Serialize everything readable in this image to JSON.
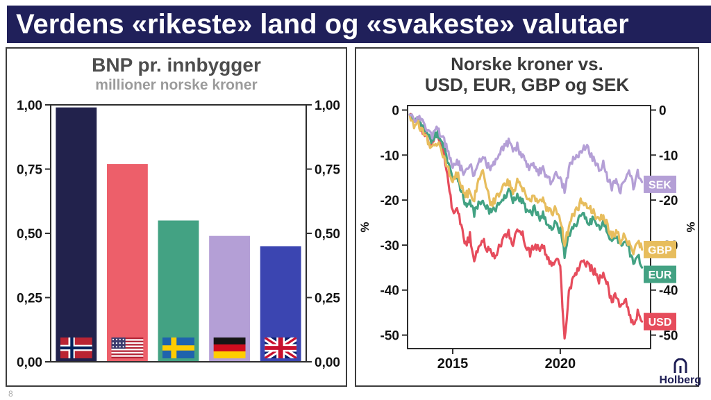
{
  "banner": {
    "title": "Verdens «rikeste» land og «svakeste» valutaer"
  },
  "page_number": "8",
  "logo": {
    "text": "Holberg"
  },
  "chart_data": [
    {
      "type": "bar",
      "title": "BNP pr. innbygger",
      "subtitle": "millioner norske kroner",
      "categories": [
        "Norge",
        "USA",
        "Sverige",
        "Tyskland",
        "Storbritannia"
      ],
      "values": [
        0.99,
        0.77,
        0.55,
        0.49,
        0.45
      ],
      "colors": [
        "#22224c",
        "#ed5f6a",
        "#43a283",
        "#b49fd6",
        "#3b45b1"
      ],
      "flags": [
        "norway",
        "usa",
        "sweden",
        "germany",
        "uk"
      ],
      "ylim": [
        0,
        1.0
      ],
      "yticks": [
        0,
        0.25,
        0.5,
        0.75,
        1.0
      ],
      "ytick_labels": [
        "0,00",
        "0,25",
        "0,50",
        "0,75",
        "1,00"
      ]
    },
    {
      "type": "line",
      "title": "Norske kroner vs. USD, EUR, GBP og SEK",
      "title_lines": [
        "Norske kroner vs.",
        "USD, EUR, GBP og SEK"
      ],
      "ylabel": "%",
      "xlim": [
        2012.9,
        2024.2
      ],
      "ylim": [
        -53,
        1
      ],
      "yticks": [
        0,
        -10,
        -20,
        -30,
        -40,
        -50
      ],
      "ytick_labels": [
        "0",
        "-10",
        "-20",
        "-30",
        "-40",
        "-50"
      ],
      "xticks": [
        2015,
        2020
      ],
      "xtick_labels": [
        "2015",
        "2020"
      ],
      "x_start": 2013.0,
      "x_step": 0.2,
      "series": [
        {
          "name": "SEK",
          "color": "#b49fd6",
          "label_y": -16.5,
          "values": [
            -1,
            -2,
            -1,
            -3,
            -4,
            -6,
            -4,
            -5,
            -7,
            -9,
            -13,
            -11,
            -13,
            -14,
            -12,
            -15,
            -12,
            -10,
            -12,
            -13,
            -11,
            -9,
            -8,
            -7,
            -9,
            -8,
            -10,
            -12,
            -13,
            -12,
            -14,
            -13,
            -15,
            -16,
            -14,
            -15,
            -18,
            -13,
            -11,
            -10,
            -9,
            -8,
            -10,
            -11,
            -13,
            -12,
            -15,
            -17,
            -16,
            -18,
            -15,
            -13,
            -17,
            -14,
            -16
          ]
        },
        {
          "name": "GBP",
          "color": "#e7bd5d",
          "label_y": -31,
          "values": [
            -1,
            -4,
            -3,
            -5,
            -6,
            -9,
            -7,
            -8,
            -11,
            -13,
            -16,
            -14,
            -17,
            -19,
            -18,
            -20,
            -15,
            -13,
            -18,
            -21,
            -20,
            -18,
            -17,
            -16,
            -18,
            -16,
            -17,
            -19,
            -20,
            -19,
            -21,
            -20,
            -22,
            -23,
            -22,
            -24,
            -30,
            -26,
            -23,
            -22,
            -20,
            -21,
            -22,
            -23,
            -25,
            -23,
            -26,
            -28,
            -27,
            -29,
            -28,
            -30,
            -32,
            -29,
            -31
          ]
        },
        {
          "name": "EUR",
          "color": "#43a283",
          "label_y": -36.5,
          "values": [
            -1,
            -3,
            -2,
            -4,
            -5,
            -7,
            -5,
            -6,
            -8,
            -12,
            -16,
            -15,
            -18,
            -21,
            -20,
            -23,
            -21,
            -20,
            -22,
            -23,
            -22,
            -20,
            -19,
            -18,
            -20,
            -19,
            -20,
            -22,
            -23,
            -22,
            -24,
            -23,
            -25,
            -26,
            -25,
            -27,
            -32,
            -28,
            -26,
            -25,
            -23,
            -24,
            -25,
            -24,
            -26,
            -25,
            -27,
            -29,
            -28,
            -30,
            -29,
            -31,
            -34,
            -32,
            -35
          ]
        },
        {
          "name": "USD",
          "color": "#e64c5c",
          "label_y": -47,
          "values": [
            -1,
            -3,
            -2,
            -5,
            -6,
            -8,
            -6,
            -7,
            -10,
            -16,
            -23,
            -21,
            -26,
            -30,
            -28,
            -33,
            -30,
            -29,
            -31,
            -32,
            -33,
            -30,
            -28,
            -27,
            -30,
            -26,
            -27,
            -30,
            -32,
            -30,
            -31,
            -30,
            -33,
            -34,
            -33,
            -35,
            -51,
            -41,
            -37,
            -36,
            -33,
            -34,
            -35,
            -36,
            -38,
            -36,
            -39,
            -43,
            -41,
            -44,
            -42,
            -45,
            -48,
            -45,
            -47
          ]
        }
      ]
    }
  ]
}
